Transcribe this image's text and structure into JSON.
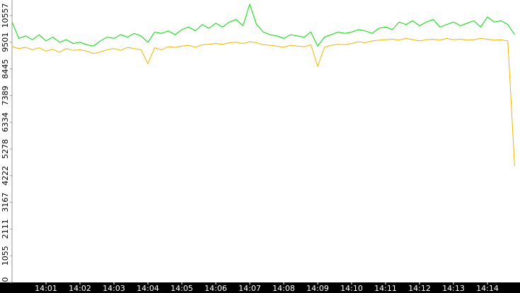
{
  "chart_data": {
    "type": "line",
    "categories": [
      null,
      null,
      null,
      null,
      null,
      "14:01",
      null,
      null,
      null,
      null,
      "14:02",
      null,
      null,
      null,
      null,
      "14:03",
      null,
      null,
      null,
      null,
      "14:04",
      null,
      null,
      null,
      null,
      "14:05",
      null,
      null,
      null,
      null,
      "14:06",
      null,
      null,
      null,
      null,
      "14:07",
      null,
      null,
      null,
      null,
      "14:08",
      null,
      null,
      null,
      null,
      "14:09",
      null,
      null,
      null,
      null,
      "14:10",
      null,
      null,
      null,
      null,
      "14:11",
      null,
      null,
      null,
      null,
      "14:12",
      null,
      null,
      null,
      null,
      "14:13",
      null,
      null,
      null,
      null,
      "14:14",
      null,
      null,
      null,
      null
    ],
    "series": [
      {
        "color": "#00dd00",
        "values": [
          10300,
          9650,
          9750,
          9600,
          9800,
          9550,
          9700,
          9500,
          9600,
          9450,
          9500,
          9400,
          9350,
          9550,
          9700,
          9650,
          9800,
          9700,
          9850,
          9750,
          9500,
          9900,
          9850,
          9950,
          9800,
          10000,
          10100,
          9950,
          10200,
          10050,
          10250,
          10100,
          10300,
          10400,
          10150,
          11000,
          10200,
          9900,
          9800,
          9750,
          9650,
          9800,
          9750,
          9700,
          9900,
          9350,
          9700,
          9800,
          9900,
          9850,
          9900,
          10000,
          9950,
          9850,
          10050,
          10100,
          10000,
          10300,
          10200,
          10350,
          10150,
          10300,
          10400,
          10100,
          10200,
          10300,
          10150,
          10250,
          10350,
          10100,
          10500,
          10300,
          10350,
          10200,
          9800
        ]
      },
      {
        "color": "#f0b400",
        "values": [
          9330,
          9250,
          9300,
          9200,
          9280,
          9150,
          9220,
          9100,
          9250,
          9180,
          9200,
          9150,
          9050,
          9120,
          9200,
          9250,
          9180,
          9300,
          9250,
          9200,
          8650,
          9280,
          9200,
          9320,
          9300,
          9350,
          9380,
          9300,
          9400,
          9420,
          9450,
          9420,
          9480,
          9500,
          9450,
          9520,
          9480,
          9400,
          9380,
          9350,
          9300,
          9380,
          9350,
          9320,
          9400,
          8550,
          9300,
          9380,
          9420,
          9400,
          9450,
          9520,
          9480,
          9550,
          9580,
          9600,
          9620,
          9580,
          9650,
          9600,
          9550,
          9600,
          9620,
          9580,
          9650,
          9600,
          9620,
          9580,
          9600,
          9650,
          9620,
          9580,
          9600,
          9550,
          4600
        ]
      }
    ],
    "ylim": [
      0,
      11170
    ],
    "yticks": [
      0,
      1055,
      2111,
      3167,
      4222,
      5278,
      6334,
      7389,
      8445,
      9501,
      10557
    ]
  }
}
